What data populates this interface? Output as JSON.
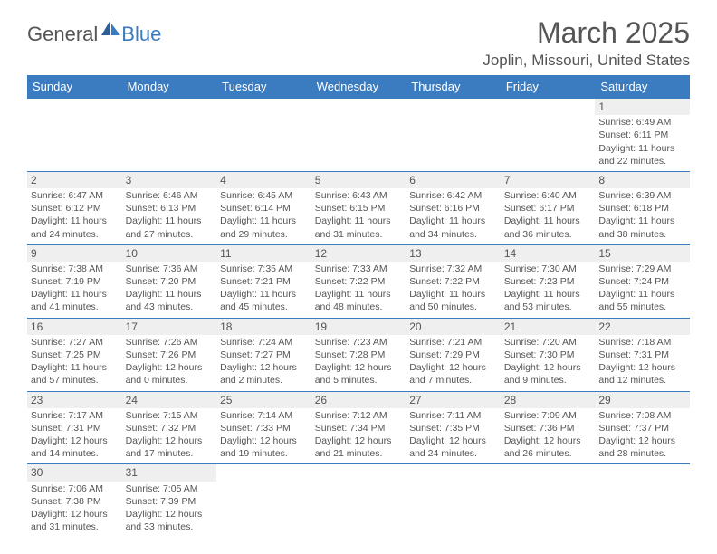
{
  "logo": {
    "part1": "General",
    "part2": "Blue"
  },
  "title": "March 2025",
  "location": "Joplin, Missouri, United States",
  "colors": {
    "header_bg": "#3b7bbf",
    "header_text": "#ffffff",
    "border": "#3b7bbf",
    "daynum_bg": "#efefef",
    "text": "#555555",
    "logo_blue": "#3b7bbf"
  },
  "typography": {
    "title_size": 32,
    "location_size": 17,
    "header_size": 13,
    "cell_size": 10.5,
    "daynum_size": 12
  },
  "weekdays": [
    "Sunday",
    "Monday",
    "Tuesday",
    "Wednesday",
    "Thursday",
    "Friday",
    "Saturday"
  ],
  "rows": [
    [
      {
        "empty": true
      },
      {
        "empty": true
      },
      {
        "empty": true
      },
      {
        "empty": true
      },
      {
        "empty": true
      },
      {
        "empty": true
      },
      {
        "day": "1",
        "sunrise": "Sunrise: 6:49 AM",
        "sunset": "Sunset: 6:11 PM",
        "daylight1": "Daylight: 11 hours",
        "daylight2": "and 22 minutes."
      }
    ],
    [
      {
        "day": "2",
        "sunrise": "Sunrise: 6:47 AM",
        "sunset": "Sunset: 6:12 PM",
        "daylight1": "Daylight: 11 hours",
        "daylight2": "and 24 minutes."
      },
      {
        "day": "3",
        "sunrise": "Sunrise: 6:46 AM",
        "sunset": "Sunset: 6:13 PM",
        "daylight1": "Daylight: 11 hours",
        "daylight2": "and 27 minutes."
      },
      {
        "day": "4",
        "sunrise": "Sunrise: 6:45 AM",
        "sunset": "Sunset: 6:14 PM",
        "daylight1": "Daylight: 11 hours",
        "daylight2": "and 29 minutes."
      },
      {
        "day": "5",
        "sunrise": "Sunrise: 6:43 AM",
        "sunset": "Sunset: 6:15 PM",
        "daylight1": "Daylight: 11 hours",
        "daylight2": "and 31 minutes."
      },
      {
        "day": "6",
        "sunrise": "Sunrise: 6:42 AM",
        "sunset": "Sunset: 6:16 PM",
        "daylight1": "Daylight: 11 hours",
        "daylight2": "and 34 minutes."
      },
      {
        "day": "7",
        "sunrise": "Sunrise: 6:40 AM",
        "sunset": "Sunset: 6:17 PM",
        "daylight1": "Daylight: 11 hours",
        "daylight2": "and 36 minutes."
      },
      {
        "day": "8",
        "sunrise": "Sunrise: 6:39 AM",
        "sunset": "Sunset: 6:18 PM",
        "daylight1": "Daylight: 11 hours",
        "daylight2": "and 38 minutes."
      }
    ],
    [
      {
        "day": "9",
        "sunrise": "Sunrise: 7:38 AM",
        "sunset": "Sunset: 7:19 PM",
        "daylight1": "Daylight: 11 hours",
        "daylight2": "and 41 minutes."
      },
      {
        "day": "10",
        "sunrise": "Sunrise: 7:36 AM",
        "sunset": "Sunset: 7:20 PM",
        "daylight1": "Daylight: 11 hours",
        "daylight2": "and 43 minutes."
      },
      {
        "day": "11",
        "sunrise": "Sunrise: 7:35 AM",
        "sunset": "Sunset: 7:21 PM",
        "daylight1": "Daylight: 11 hours",
        "daylight2": "and 45 minutes."
      },
      {
        "day": "12",
        "sunrise": "Sunrise: 7:33 AM",
        "sunset": "Sunset: 7:22 PM",
        "daylight1": "Daylight: 11 hours",
        "daylight2": "and 48 minutes."
      },
      {
        "day": "13",
        "sunrise": "Sunrise: 7:32 AM",
        "sunset": "Sunset: 7:22 PM",
        "daylight1": "Daylight: 11 hours",
        "daylight2": "and 50 minutes."
      },
      {
        "day": "14",
        "sunrise": "Sunrise: 7:30 AM",
        "sunset": "Sunset: 7:23 PM",
        "daylight1": "Daylight: 11 hours",
        "daylight2": "and 53 minutes."
      },
      {
        "day": "15",
        "sunrise": "Sunrise: 7:29 AM",
        "sunset": "Sunset: 7:24 PM",
        "daylight1": "Daylight: 11 hours",
        "daylight2": "and 55 minutes."
      }
    ],
    [
      {
        "day": "16",
        "sunrise": "Sunrise: 7:27 AM",
        "sunset": "Sunset: 7:25 PM",
        "daylight1": "Daylight: 11 hours",
        "daylight2": "and 57 minutes."
      },
      {
        "day": "17",
        "sunrise": "Sunrise: 7:26 AM",
        "sunset": "Sunset: 7:26 PM",
        "daylight1": "Daylight: 12 hours",
        "daylight2": "and 0 minutes."
      },
      {
        "day": "18",
        "sunrise": "Sunrise: 7:24 AM",
        "sunset": "Sunset: 7:27 PM",
        "daylight1": "Daylight: 12 hours",
        "daylight2": "and 2 minutes."
      },
      {
        "day": "19",
        "sunrise": "Sunrise: 7:23 AM",
        "sunset": "Sunset: 7:28 PM",
        "daylight1": "Daylight: 12 hours",
        "daylight2": "and 5 minutes."
      },
      {
        "day": "20",
        "sunrise": "Sunrise: 7:21 AM",
        "sunset": "Sunset: 7:29 PM",
        "daylight1": "Daylight: 12 hours",
        "daylight2": "and 7 minutes."
      },
      {
        "day": "21",
        "sunrise": "Sunrise: 7:20 AM",
        "sunset": "Sunset: 7:30 PM",
        "daylight1": "Daylight: 12 hours",
        "daylight2": "and 9 minutes."
      },
      {
        "day": "22",
        "sunrise": "Sunrise: 7:18 AM",
        "sunset": "Sunset: 7:31 PM",
        "daylight1": "Daylight: 12 hours",
        "daylight2": "and 12 minutes."
      }
    ],
    [
      {
        "day": "23",
        "sunrise": "Sunrise: 7:17 AM",
        "sunset": "Sunset: 7:31 PM",
        "daylight1": "Daylight: 12 hours",
        "daylight2": "and 14 minutes."
      },
      {
        "day": "24",
        "sunrise": "Sunrise: 7:15 AM",
        "sunset": "Sunset: 7:32 PM",
        "daylight1": "Daylight: 12 hours",
        "daylight2": "and 17 minutes."
      },
      {
        "day": "25",
        "sunrise": "Sunrise: 7:14 AM",
        "sunset": "Sunset: 7:33 PM",
        "daylight1": "Daylight: 12 hours",
        "daylight2": "and 19 minutes."
      },
      {
        "day": "26",
        "sunrise": "Sunrise: 7:12 AM",
        "sunset": "Sunset: 7:34 PM",
        "daylight1": "Daylight: 12 hours",
        "daylight2": "and 21 minutes."
      },
      {
        "day": "27",
        "sunrise": "Sunrise: 7:11 AM",
        "sunset": "Sunset: 7:35 PM",
        "daylight1": "Daylight: 12 hours",
        "daylight2": "and 24 minutes."
      },
      {
        "day": "28",
        "sunrise": "Sunrise: 7:09 AM",
        "sunset": "Sunset: 7:36 PM",
        "daylight1": "Daylight: 12 hours",
        "daylight2": "and 26 minutes."
      },
      {
        "day": "29",
        "sunrise": "Sunrise: 7:08 AM",
        "sunset": "Sunset: 7:37 PM",
        "daylight1": "Daylight: 12 hours",
        "daylight2": "and 28 minutes."
      }
    ],
    [
      {
        "day": "30",
        "sunrise": "Sunrise: 7:06 AM",
        "sunset": "Sunset: 7:38 PM",
        "daylight1": "Daylight: 12 hours",
        "daylight2": "and 31 minutes."
      },
      {
        "day": "31",
        "sunrise": "Sunrise: 7:05 AM",
        "sunset": "Sunset: 7:39 PM",
        "daylight1": "Daylight: 12 hours",
        "daylight2": "and 33 minutes."
      },
      {
        "empty": true
      },
      {
        "empty": true
      },
      {
        "empty": true
      },
      {
        "empty": true
      },
      {
        "empty": true
      }
    ]
  ]
}
